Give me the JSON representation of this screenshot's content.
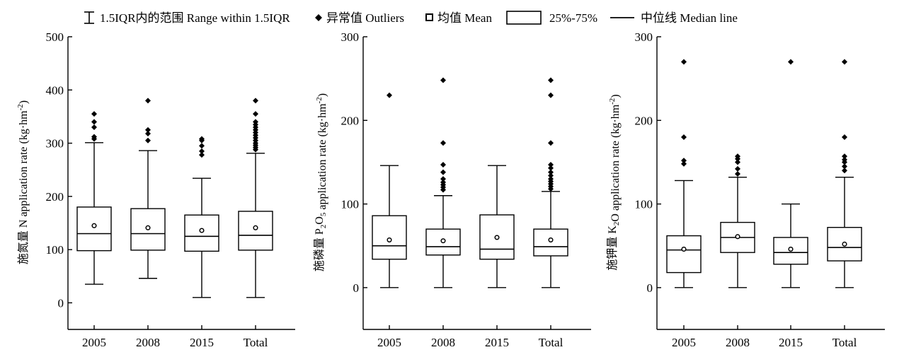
{
  "legend": {
    "range": "1.5IQR内的范围 Range within 1.5IQR",
    "outliers": "异常值 Outliers",
    "mean": "均值 Mean",
    "box": "25%-75%",
    "median": "中位线 Median line"
  },
  "chart_data": [
    {
      "type": "boxplot",
      "ylabel_prefix": "施氮量 N application rate (kg·hm",
      "ylabel_sup": "-2",
      "ylabel_suffix": ")",
      "ylim": [
        -50,
        500
      ],
      "yticks": [
        0,
        100,
        200,
        300,
        400,
        500
      ],
      "categories": [
        "2005",
        "2008",
        "2015",
        "Total"
      ],
      "boxes": [
        {
          "whisker_low": 35,
          "q1": 98,
          "median": 130,
          "q3": 180,
          "whisker_high": 301,
          "mean": 145,
          "outliers": [
            308,
            312,
            330,
            340,
            355
          ]
        },
        {
          "whisker_low": 46,
          "q1": 99,
          "median": 130,
          "q3": 177,
          "whisker_high": 286,
          "mean": 141,
          "outliers": [
            305,
            318,
            325,
            380
          ]
        },
        {
          "whisker_low": 10,
          "q1": 97,
          "median": 125,
          "q3": 165,
          "whisker_high": 234,
          "mean": 136,
          "outliers": [
            278,
            285,
            295,
            305,
            308
          ]
        },
        {
          "whisker_low": 10,
          "q1": 99,
          "median": 127,
          "q3": 172,
          "whisker_high": 281,
          "mean": 141,
          "outliers": [
            288,
            292,
            296,
            300,
            305,
            310,
            315,
            320,
            325,
            330,
            335,
            340,
            355,
            380
          ]
        }
      ]
    },
    {
      "type": "boxplot",
      "ylabel_prefix": "施磷量 P",
      "ylabel_sub": "2",
      "ylabel_mid": "O",
      "ylabel_sub2": "5",
      "ylabel_suffix_pre": " application rate (kg·hm",
      "ylabel_sup": "-2",
      "ylabel_suffix": ")",
      "ylim": [
        -50,
        300
      ],
      "yticks": [
        0,
        100,
        200,
        300
      ],
      "categories": [
        "2005",
        "2008",
        "2015",
        "Total"
      ],
      "boxes": [
        {
          "whisker_low": 0,
          "q1": 34,
          "median": 50,
          "q3": 86,
          "whisker_high": 146,
          "mean": 57,
          "outliers": [
            230
          ]
        },
        {
          "whisker_low": 0,
          "q1": 39,
          "median": 49,
          "q3": 70,
          "whisker_high": 110,
          "mean": 56,
          "outliers": [
            117,
            120,
            123,
            126,
            130,
            138,
            147,
            173,
            248
          ]
        },
        {
          "whisker_low": 0,
          "q1": 34,
          "median": 46,
          "q3": 87,
          "whisker_high": 146,
          "mean": 60,
          "outliers": []
        },
        {
          "whisker_low": 0,
          "q1": 38,
          "median": 49,
          "q3": 70,
          "whisker_high": 115,
          "mean": 57,
          "outliers": [
            118,
            121,
            124,
            127,
            130,
            134,
            138,
            143,
            147,
            173,
            230,
            248
          ]
        }
      ]
    },
    {
      "type": "boxplot",
      "ylabel_prefix": "施钾量 K",
      "ylabel_sub": "2",
      "ylabel_suffix_pre": "O application rate (kg·hm",
      "ylabel_sup": "-2",
      "ylabel_suffix": ")",
      "ylim": [
        -50,
        300
      ],
      "yticks": [
        0,
        100,
        200,
        300
      ],
      "categories": [
        "2005",
        "2008",
        "2015",
        "Total"
      ],
      "boxes": [
        {
          "whisker_low": 0,
          "q1": 18,
          "median": 45,
          "q3": 62,
          "whisker_high": 128,
          "mean": 46,
          "outliers": [
            148,
            152,
            180,
            270
          ]
        },
        {
          "whisker_low": 0,
          "q1": 42,
          "median": 60,
          "q3": 78,
          "whisker_high": 132,
          "mean": 61,
          "outliers": [
            136,
            142,
            150,
            154,
            157
          ]
        },
        {
          "whisker_low": 0,
          "q1": 28,
          "median": 42,
          "q3": 60,
          "whisker_high": 100,
          "mean": 46,
          "outliers": [
            270
          ]
        },
        {
          "whisker_low": 0,
          "q1": 32,
          "median": 48,
          "q3": 72,
          "whisker_high": 132,
          "mean": 52,
          "outliers": [
            140,
            145,
            150,
            153,
            157,
            180,
            270
          ]
        }
      ]
    }
  ]
}
